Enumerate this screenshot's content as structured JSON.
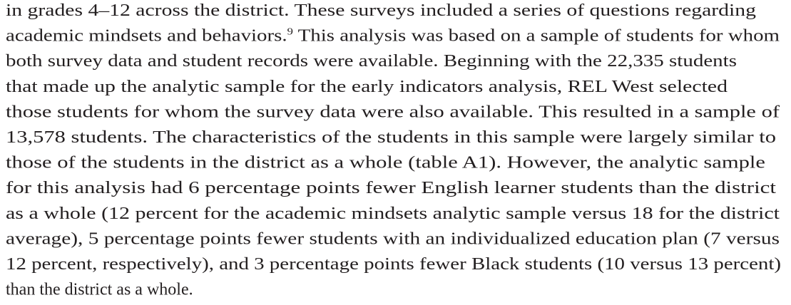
{
  "paragraph": {
    "lines": [
      {
        "text": "in grades 4–12 across the district. These surveys included a series of questions regarding"
      },
      {
        "text": "academic mindsets and behaviors.",
        "footnote": "9",
        "after": " This analysis was based on a sample of students for whom"
      },
      {
        "text": "both survey data and student records were available. Beginning with the 22,335 students"
      },
      {
        "text": "that made up the analytic sample for the early indicators analysis, REL West selected"
      },
      {
        "text": "those students for whom the survey data were also available. This resulted in a sample of"
      },
      {
        "text": "13,578 students. The characteristics of the students in this sample were largely similar to"
      },
      {
        "text": "those of the students in the district as a whole (table A1). However, the analytic sample"
      },
      {
        "text": "for this analysis had 6 percentage points fewer English learner students than the district"
      },
      {
        "text": "as a whole (12 percent for the academic mindsets analytic sample versus 18 for the district"
      },
      {
        "text": "average), 5 percentage points fewer students with an individualized education plan (7 versus"
      },
      {
        "text": "12 percent, respectively), and 3 percentage points fewer Black students (10 versus 13 percent)"
      },
      {
        "text": "than the district as a whole."
      }
    ]
  }
}
